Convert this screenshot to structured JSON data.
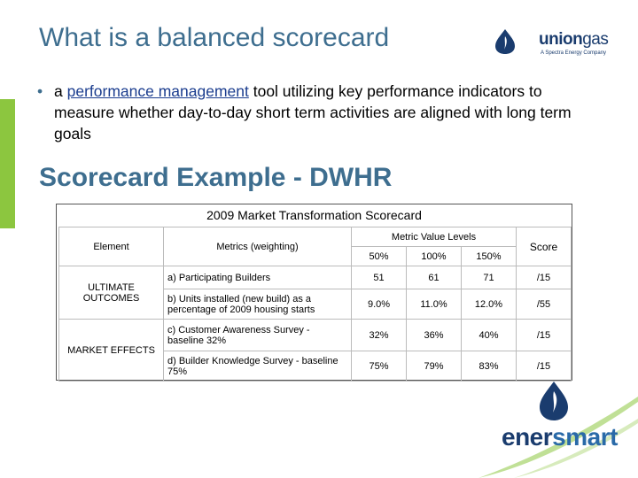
{
  "slide": {
    "title": "What is a balanced scorecard",
    "bullet": {
      "prefix": "a ",
      "link": "performance management",
      "rest": " tool utilizing key performance indicators to measure whether day-to-day short term activities are aligned with long term goals"
    },
    "subtitle": "Scorecard Example - DWHR"
  },
  "logos": {
    "union_main": "union",
    "union_gas": "gas",
    "union_tagline": "A Spectra Energy Company",
    "enersmart_ener": "ener",
    "enersmart_smart": "smart"
  },
  "scorecard": {
    "title": "2009 Market Transformation Scorecard",
    "headers": {
      "element": "Element",
      "metrics": "Metrics (weighting)",
      "levels": "Metric Value Levels",
      "l50": "50%",
      "l100": "100%",
      "l150": "150%",
      "score": "Score"
    },
    "groups": {
      "ultimate": "ULTIMATE OUTCOMES",
      "market": "MARKET EFFECTS"
    },
    "rows": [
      {
        "metric": "a) Participating Builders",
        "v50": "51",
        "v100": "61",
        "v150": "71",
        "score": "/15"
      },
      {
        "metric": "b) Units installed (new build) as a percentage of 2009 housing starts",
        "v50": "9.0%",
        "v100": "11.0%",
        "v150": "12.0%",
        "score": "/55"
      },
      {
        "metric": "c) Customer Awareness Survey - baseline 32%",
        "v50": "32%",
        "v100": "36%",
        "v150": "40%",
        "score": "/15"
      },
      {
        "metric": "d) Builder Knowledge Survey - baseline 75%",
        "v50": "75%",
        "v100": "79%",
        "v150": "83%",
        "score": "/15"
      }
    ]
  },
  "colors": {
    "title_blue": "#3e6e8f",
    "accent_green": "#8cc63f",
    "brand_navy": "#1a3c6e"
  }
}
